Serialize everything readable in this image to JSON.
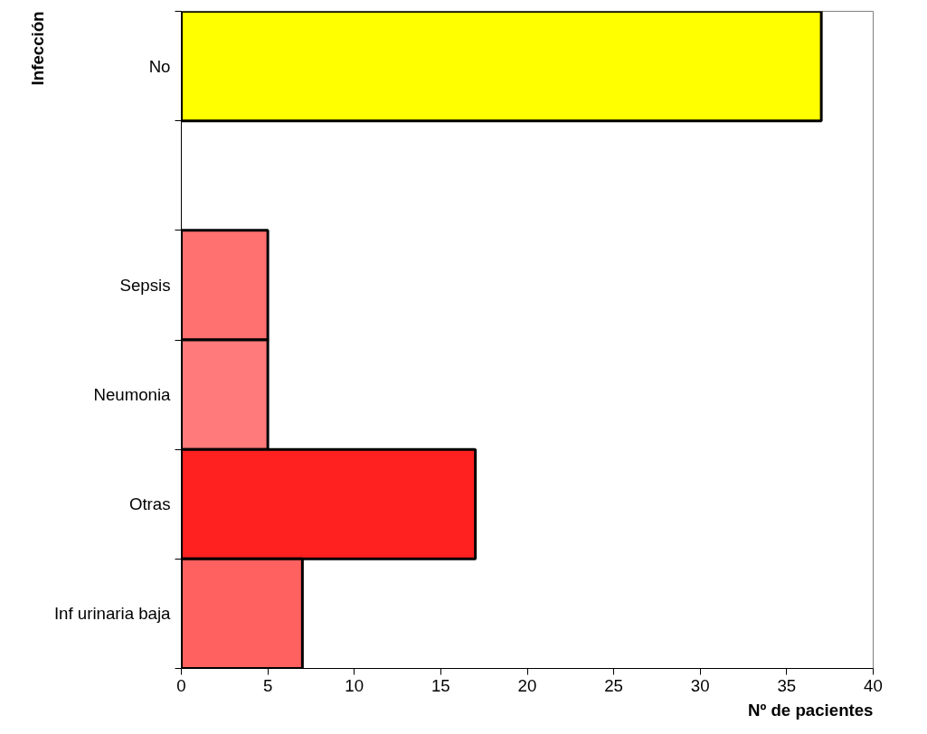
{
  "chart_data": {
    "type": "bar",
    "orientation": "horizontal",
    "xlabel": "Nº de pacientes",
    "ylabel": "Infección",
    "categories": [
      "No",
      null,
      "Sepsis",
      "Neumonia",
      "Otras",
      "Inf urinaria baja"
    ],
    "values": [
      37,
      null,
      5,
      5,
      17,
      7
    ],
    "colors": [
      "#ffff00",
      "#ffffff",
      "#ff7070",
      "#ff7a7a",
      "#ff2020",
      "#ff6060"
    ],
    "xlim": [
      0,
      40
    ],
    "xticks": [
      0,
      5,
      10,
      15,
      20,
      25,
      30,
      35,
      40
    ],
    "grid": false
  }
}
